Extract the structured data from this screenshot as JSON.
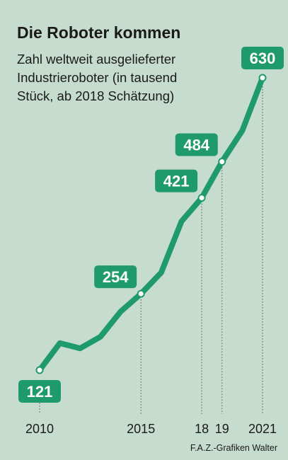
{
  "chart_data": {
    "type": "line",
    "title": "Die Roboter kommen",
    "subtitle": [
      "Zahl weltweit ausgelieferter",
      "Industrieroboter (in tausend",
      "Stück, ab 2018 Schätzung)"
    ],
    "source": "F.A.Z.-Grafiken Walter",
    "x": [
      2010,
      2011,
      2012,
      2013,
      2014,
      2015,
      2016,
      2017,
      2018,
      2019,
      2020,
      2021
    ],
    "values": [
      121,
      168,
      159,
      179,
      223,
      254,
      291,
      380,
      421,
      484,
      538,
      630
    ],
    "value_labels": [
      "121",
      null,
      null,
      null,
      null,
      "254",
      null,
      null,
      "421",
      "484",
      null,
      "630"
    ],
    "color": "#1f9a6c",
    "xlim": [
      2010,
      2021
    ],
    "xticks": [
      2010,
      2015,
      {
        "value": 2018,
        "label": "18"
      },
      {
        "value": 2019,
        "label": "19"
      },
      2021
    ]
  }
}
